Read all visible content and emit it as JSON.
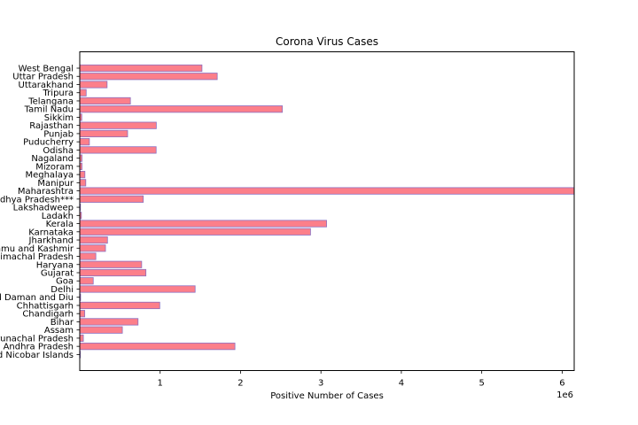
{
  "chart_data": {
    "type": "bar",
    "orientation": "horizontal",
    "title": "Corona Virus Cases",
    "xlabel": "Positive Number of Cases",
    "ylabel": "",
    "x_scale_label": "1e6",
    "x_ticks": [
      1,
      2,
      3,
      4,
      5,
      6
    ],
    "xlim": [
      0,
      6.15
    ],
    "grid": false,
    "bar_color": "#fc7f8a",
    "edge_color": "#8c6fc0",
    "categories": [
      "Andaman and Nicobar Islands",
      "Andhra Pradesh",
      "Arunachal Pradesh",
      "Assam",
      "Bihar",
      "Chandigarh",
      "Chhattisgarh",
      "Dadra and Nagar Haveli and Daman and Diu",
      "Delhi",
      "Goa",
      "Gujarat",
      "Haryana",
      "Himachal Pradesh",
      "Jammu and Kashmir",
      "Jharkhand",
      "Karnataka",
      "Kerala",
      "Ladakh",
      "Lakshadweep",
      "Madhya Pradesh***",
      "Maharashtra",
      "Manipur",
      "Meghalaya",
      "Mizoram",
      "Nagaland",
      "Odisha",
      "Puducherry",
      "Punjab",
      "Rajasthan",
      "Sikkim",
      "Tamil Nadu",
      "Telangana",
      "Tripura",
      "Uttarakhand",
      "Uttar Pradesh",
      "West Bengal"
    ],
    "values": [
      0.0075,
      1.93,
      0.045,
      0.53,
      0.725,
      0.062,
      0.995,
      0.0106,
      1.435,
      0.168,
      0.823,
      0.77,
      0.2,
      0.32,
      0.345,
      2.87,
      3.07,
      0.02,
      0.009,
      0.79,
      6.15,
      0.075,
      0.064,
      0.028,
      0.028,
      0.95,
      0.12,
      0.595,
      0.952,
      0.025,
      2.52,
      0.63,
      0.08,
      0.34,
      1.71,
      1.52
    ]
  }
}
